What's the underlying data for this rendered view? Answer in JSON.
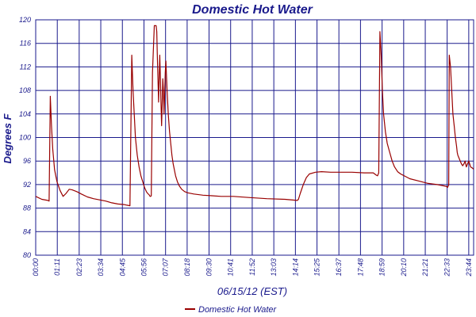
{
  "chart_data": {
    "type": "line",
    "title": "Domestic Hot Water",
    "xlabel": "06/15/12 (EST)",
    "ylabel": "Degrees F",
    "ylim": [
      80,
      120
    ],
    "yticks": [
      80,
      84,
      88,
      92,
      96,
      100,
      104,
      108,
      112,
      116,
      120
    ],
    "xlim": [
      0,
      1440
    ],
    "xtick_labels": [
      "00:00",
      "01:11",
      "02:23",
      "03:34",
      "04:45",
      "05:56",
      "07:07",
      "08:18",
      "09:30",
      "10:41",
      "11:52",
      "13:03",
      "14:14",
      "15:25",
      "16:37",
      "17:48",
      "18:59",
      "20:10",
      "21:21",
      "22:33",
      "23:44"
    ],
    "xtick_minutes": [
      0,
      71,
      143,
      214,
      285,
      356,
      427,
      498,
      570,
      641,
      712,
      783,
      854,
      925,
      997,
      1068,
      1139,
      1210,
      1281,
      1353,
      1424
    ],
    "grid": true,
    "legend_position": "bottom",
    "colors": {
      "series": "#990000",
      "grid": "#1a1a8c",
      "text": "#1a1a8c"
    },
    "series": [
      {
        "name": "Domestic Hot Water",
        "x": [
          0,
          20,
          40,
          44,
          48,
          52,
          56,
          62,
          70,
          80,
          90,
          100,
          110,
          120,
          135,
          150,
          170,
          190,
          210,
          230,
          250,
          270,
          290,
          300,
          310,
          316,
          320,
          324,
          328,
          334,
          340,
          346,
          352,
          358,
          364,
          368,
          372,
          374,
          376,
          378,
          380,
          384,
          390,
          396,
          398,
          400,
          402,
          404,
          406,
          408,
          410,
          412,
          414,
          416,
          418,
          420,
          422,
          424,
          426,
          428,
          432,
          436,
          440,
          444,
          448,
          452,
          456,
          460,
          466,
          472,
          480,
          490,
          500,
          520,
          550,
          580,
          610,
          650,
          700,
          760,
          820,
          860,
          864,
          870,
          880,
          890,
          900,
          920,
          940,
          970,
          1000,
          1040,
          1080,
          1110,
          1120,
          1124,
          1128,
          1132,
          1136,
          1140,
          1144,
          1150,
          1156,
          1164,
          1172,
          1180,
          1190,
          1200,
          1215,
          1230,
          1260,
          1290,
          1320,
          1340,
          1350,
          1354,
          1358,
          1360,
          1364,
          1368,
          1372,
          1376,
          1380,
          1384,
          1386,
          1388,
          1392,
          1396,
          1400,
          1404,
          1408,
          1412,
          1416,
          1420,
          1424,
          1430,
          1436,
          1440
        ],
        "values": [
          90.0,
          89.5,
          89.3,
          89.2,
          107.0,
          102.0,
          98.0,
          94.5,
          92.5,
          91.0,
          90.0,
          90.5,
          91.2,
          91.1,
          90.8,
          90.4,
          89.9,
          89.6,
          89.4,
          89.2,
          88.9,
          88.7,
          88.6,
          88.5,
          88.4,
          114.0,
          108.0,
          104.0,
          100.0,
          97.0,
          95.0,
          93.5,
          92.5,
          91.5,
          90.8,
          90.5,
          90.3,
          90.2,
          90.0,
          90.0,
          90.1,
          111.0,
          119.0,
          119.0,
          118.0,
          114.0,
          110.0,
          106.0,
          110.0,
          114.0,
          110.0,
          106.0,
          102.0,
          106.0,
          110.0,
          108.0,
          104.0,
          107.0,
          111.0,
          113.0,
          108.0,
          104.0,
          101.0,
          99.0,
          97.0,
          95.5,
          94.5,
          93.5,
          92.5,
          91.8,
          91.2,
          90.8,
          90.6,
          90.4,
          90.2,
          90.1,
          90.0,
          90.0,
          89.8,
          89.6,
          89.5,
          89.3,
          89.5,
          90.5,
          92.0,
          93.2,
          93.8,
          94.1,
          94.2,
          94.1,
          94.1,
          94.1,
          94.0,
          94.0,
          93.6,
          93.5,
          94.0,
          118.0,
          114.0,
          108.0,
          104.0,
          101.0,
          99.0,
          97.5,
          96.0,
          95.0,
          94.2,
          93.8,
          93.4,
          93.0,
          92.6,
          92.2,
          92.0,
          91.8,
          91.7,
          91.5,
          91.9,
          114.0,
          112.0,
          108.0,
          104.0,
          102.0,
          100.0,
          98.5,
          97.5,
          97.0,
          96.5,
          96.0,
          95.5,
          95.2,
          95.5,
          96.0,
          95.0,
          95.5,
          96.0,
          95.0,
          94.8,
          94.6
        ]
      }
    ]
  }
}
